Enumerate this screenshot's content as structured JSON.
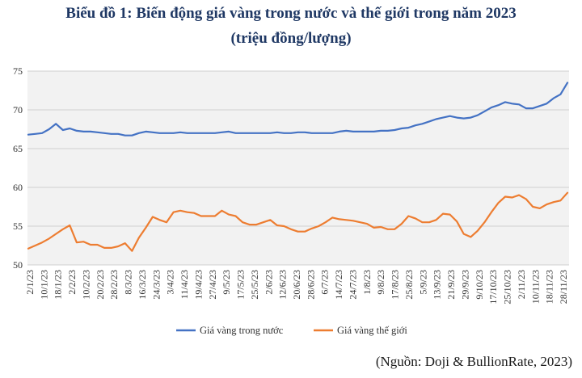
{
  "chart_data": {
    "type": "line",
    "title": "Biểu đồ 1: Biến động giá vàng trong nước và thế giới trong năm 2023",
    "subtitle": "(triệu đồng/lượng)",
    "source": "(Nguồn: Doji & BullionRate, 2023)",
    "ylim": [
      50,
      75
    ],
    "yticks": [
      "50",
      "55",
      "60",
      "65",
      "70",
      "75"
    ],
    "grid": true,
    "legend_position": "bottom",
    "x_tick_labels": [
      "2/1/23",
      "10/1/23",
      "18/1/23",
      "2/2/23",
      "10/2/23",
      "20/2/23",
      "28/2/23",
      "8/3/23",
      "16/3/23",
      "24/3/23",
      "3/4/23",
      "11/4/23",
      "19/4/23",
      "27/4/23",
      "9/5/23",
      "17/5/23",
      "25/5/23",
      "2/6/23",
      "12/6/23",
      "20/6/23",
      "28/6/23",
      "6/7/23",
      "14/7/23",
      "24/7/23",
      "1/8/23",
      "9/8/23",
      "17/8/23",
      "25/8/23",
      "5/9/23",
      "13/9/23",
      "21/9/23",
      "29/9/23",
      "9/10/23",
      "17/10/23",
      "25/10/23",
      "2/11/23",
      "10/11/23",
      "18/11/23",
      "28/11/23"
    ],
    "series": [
      {
        "name": "Giá vàng trong nước",
        "color": "#4472c4",
        "values": [
          66.8,
          66.9,
          67.0,
          67.5,
          68.2,
          67.4,
          67.6,
          67.3,
          67.2,
          67.2,
          67.1,
          67.0,
          66.9,
          66.9,
          66.7,
          66.7,
          67.0,
          67.2,
          67.1,
          67.0,
          67.0,
          67.0,
          67.1,
          67.0,
          67.0,
          67.0,
          67.0,
          67.0,
          67.1,
          67.2,
          67.0,
          67.0,
          67.0,
          67.0,
          67.0,
          67.0,
          67.1,
          67.0,
          67.0,
          67.1,
          67.1,
          67.0,
          67.0,
          67.0,
          67.0,
          67.2,
          67.3,
          67.2,
          67.2,
          67.2,
          67.2,
          67.3,
          67.3,
          67.4,
          67.6,
          67.7,
          68.0,
          68.2,
          68.5,
          68.8,
          69.0,
          69.2,
          69.0,
          68.9,
          69.0,
          69.3,
          69.8,
          70.3,
          70.6,
          71.0,
          70.8,
          70.7,
          70.2,
          70.2,
          70.5,
          70.8,
          71.5,
          72.0,
          73.5
        ]
      },
      {
        "name": "Giá vàng thế giới",
        "color": "#ed7d31",
        "values": [
          52.1,
          52.5,
          52.9,
          53.4,
          54.0,
          54.6,
          55.1,
          52.9,
          53.0,
          52.6,
          52.6,
          52.2,
          52.2,
          52.4,
          52.8,
          51.8,
          53.5,
          54.8,
          56.2,
          55.8,
          55.5,
          56.8,
          57.0,
          56.8,
          56.7,
          56.3,
          56.3,
          56.3,
          57.0,
          56.5,
          56.3,
          55.5,
          55.2,
          55.2,
          55.5,
          55.8,
          55.1,
          55.0,
          54.6,
          54.3,
          54.3,
          54.7,
          55.0,
          55.5,
          56.1,
          55.9,
          55.8,
          55.7,
          55.5,
          55.3,
          54.8,
          54.9,
          54.6,
          54.6,
          55.3,
          56.3,
          56.0,
          55.5,
          55.5,
          55.8,
          56.6,
          56.5,
          55.6,
          54.0,
          53.6,
          54.4,
          55.5,
          56.8,
          58.0,
          58.8,
          58.7,
          59.0,
          58.5,
          57.5,
          57.3,
          57.8,
          58.1,
          58.3,
          59.3
        ]
      }
    ]
  }
}
